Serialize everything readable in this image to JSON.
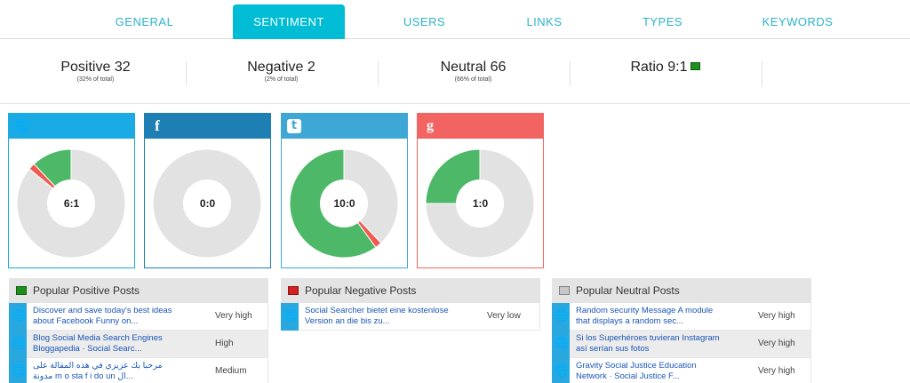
{
  "tabs": [
    {
      "label": "GENERAL"
    },
    {
      "label": "SENTIMENT",
      "active": true
    },
    {
      "label": "USERS"
    },
    {
      "label": "LINKS"
    },
    {
      "label": "TYPES"
    },
    {
      "label": "KEYWORDS"
    }
  ],
  "stats": {
    "positive": {
      "label": "Positive 32",
      "sub": "(32% of total)"
    },
    "negative": {
      "label": "Negative 2",
      "sub": "(2% of total)"
    },
    "neutral": {
      "label": "Neutral 66",
      "sub": "(66% of total)"
    },
    "ratio": {
      "label": "Ratio 9:1",
      "indicator_color": "#1d8f1d"
    }
  },
  "colors": {
    "accent": "#00bcd4",
    "positive": "#4db868",
    "negative": "#f05a50",
    "neutral": "#e2e2e2"
  },
  "networks": [
    {
      "icon": "globe-icon",
      "glyph": "🌐",
      "header_color": "#1aaae4",
      "ratio": "6:1",
      "positive": 12,
      "negative": 2,
      "neutral": 86
    },
    {
      "icon": "facebook-icon",
      "glyph": "f",
      "header_color": "#1d7fb3",
      "ratio": "0:0",
      "positive": 0,
      "negative": 0,
      "neutral": 100
    },
    {
      "icon": "twitter-icon",
      "glyph": "t",
      "header_color": "#3fa7d6",
      "ratio": "10:0",
      "positive": 60,
      "negative": 2,
      "neutral": 38
    },
    {
      "icon": "google-plus-icon",
      "glyph": "g",
      "header_color": "#f26461",
      "ratio": "1:0",
      "positive": 25,
      "negative": 0,
      "neutral": 75
    }
  ],
  "panels": {
    "positive": {
      "title": "Popular Positive Posts",
      "color": "#1d8f1d",
      "posts": [
        {
          "text": "Discover and save today's best ideas about Facebook Funny on...",
          "level": "Very high"
        },
        {
          "text": "Blog Social Media Search Engines Bloggapedia · Social Searc...",
          "level": "High"
        },
        {
          "text": "مرحبا بك عزيزي في هذه المقالة على مدونة m o sta f i do un ال...",
          "level": "Medium"
        }
      ]
    },
    "negative": {
      "title": "Popular Negative Posts",
      "color": "#d42020",
      "posts": [
        {
          "text": "Social Searcher bietet eine kostenlose Version an die bis zu...",
          "level": "Very low"
        }
      ]
    },
    "neutral": {
      "title": "Popular Neutral Posts",
      "color": "#c8c8c8",
      "posts": [
        {
          "text": "Random security Message A module that displays a random sec...",
          "level": "Very high"
        },
        {
          "text": "Si los Superhéroes tuvieran Instagram así serían sus fotos",
          "level": "Very high"
        },
        {
          "text": "Gravity Social Justice Education Network · Social Justice F...",
          "level": "Very high"
        }
      ]
    }
  }
}
